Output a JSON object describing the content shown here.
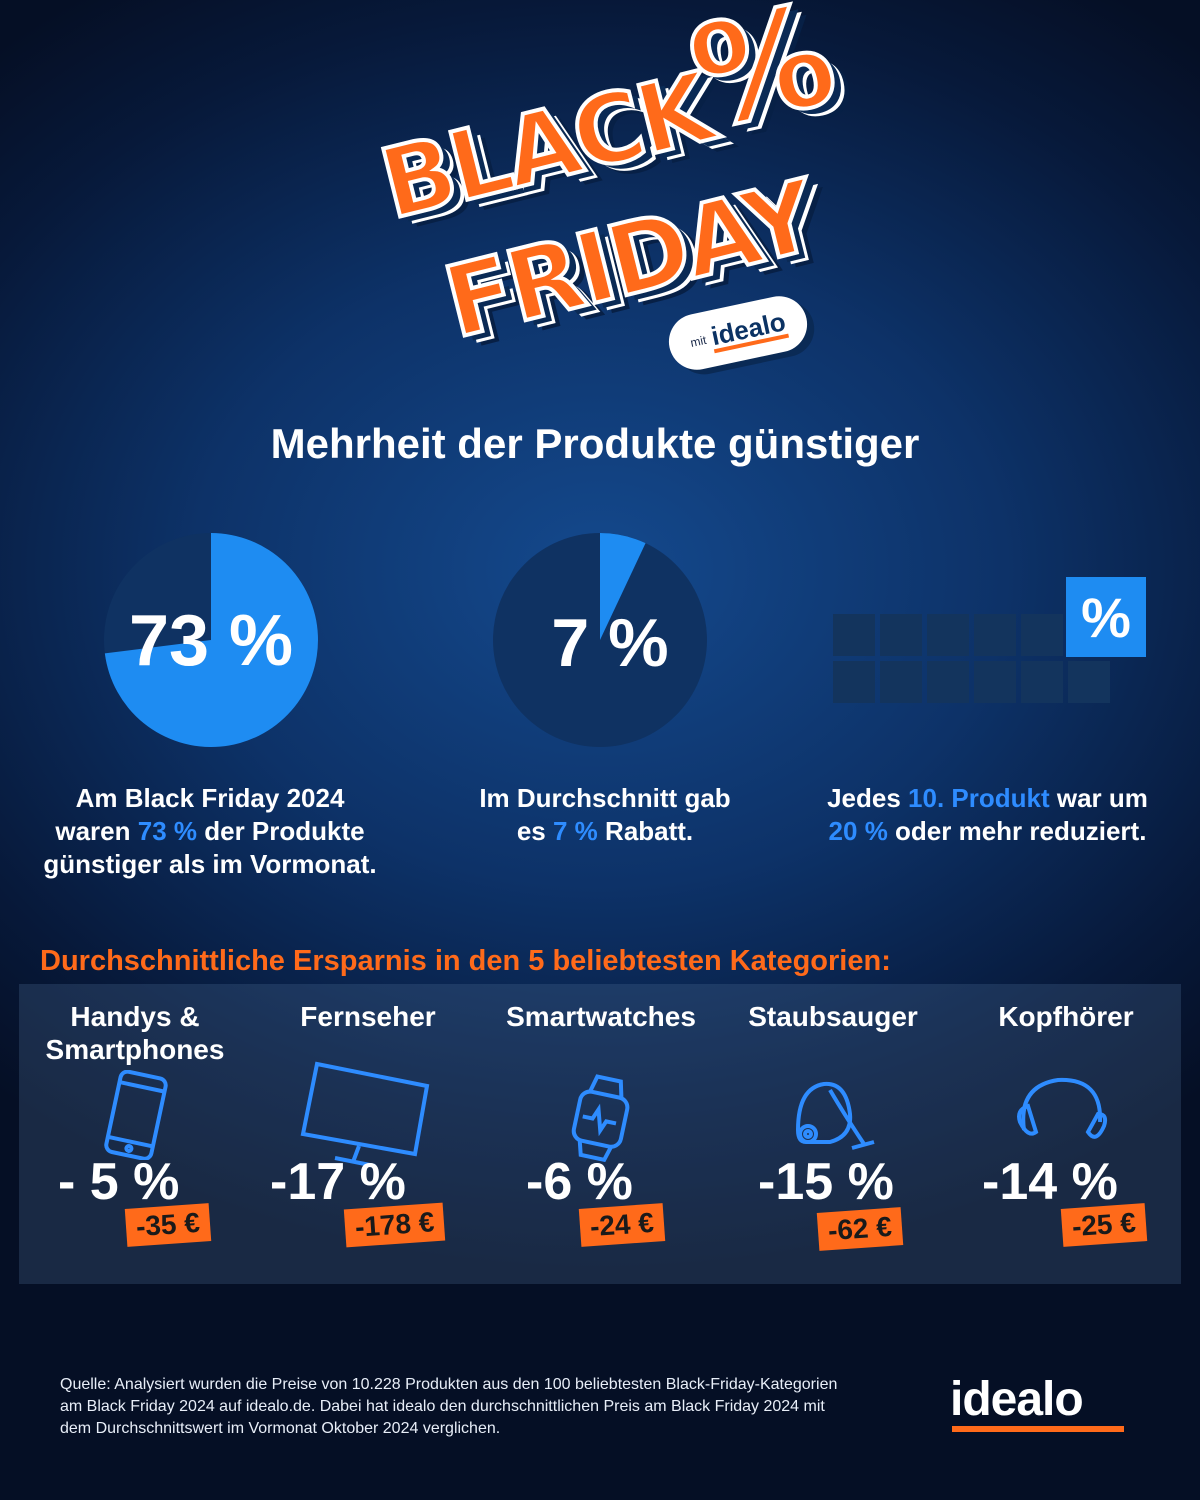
{
  "logo": {
    "word1": "BLACK",
    "word2": "FRIDAY",
    "symbol": "%",
    "badge_prefix": "mit",
    "badge_brand": "idealo"
  },
  "headline": "Mehrheit der Produkte günstiger",
  "colors": {
    "accent_blue": "#2e8cff",
    "accent_orange": "#ff6a1a",
    "pie_bg": "#0f3262"
  },
  "stats": [
    {
      "value_label": "73 %",
      "share": 0.73,
      "caption": [
        "Am Black Friday 2024",
        "waren ",
        "73 %",
        " der Produkte",
        "günstiger als im Vormonat."
      ]
    },
    {
      "value_label": "7 %",
      "share": 0.07,
      "caption": [
        "Im Durchschnitt gab",
        "es ",
        "7 %",
        " Rabatt."
      ]
    },
    {
      "grid_symbol": "%",
      "grid_highlight_fraction": 0.1,
      "caption": [
        "Jedes ",
        "10. Produkt",
        " war um",
        "20 %",
        " oder mehr reduziert."
      ]
    }
  ],
  "categories_title": "Durchschnittliche Ersparnis in den 5 beliebtesten Kategorien:",
  "categories": [
    {
      "name_line1": "Handys &",
      "name_line2": "Smartphones",
      "icon": "smartphone-icon",
      "pct": "- 5 %",
      "eur": "-35 €"
    },
    {
      "name_line1": "Fernseher",
      "name_line2": "",
      "icon": "tv-icon",
      "pct": "-17 %",
      "eur": "-178 €"
    },
    {
      "name_line1": "Smartwatches",
      "name_line2": "",
      "icon": "smartwatch-icon",
      "pct": "-6 %",
      "eur": "-24 €"
    },
    {
      "name_line1": "Staubsauger",
      "name_line2": "",
      "icon": "vacuum-icon",
      "pct": "-15 %",
      "eur": "-62 €"
    },
    {
      "name_line1": "Kopfhörer",
      "name_line2": "",
      "icon": "headphones-icon",
      "pct": "-14 %",
      "eur": "-25 €"
    }
  ],
  "source": "Quelle: Analysiert wurden die Preise von 10.228 Produkten aus den 100 beliebtesten Black-Friday-Kategorien am Black Friday 2024 auf idealo.de. Dabei hat idealo den durchschnittlichen Preis am Black Friday 2024 mit dem Durchschnittswert im Vormonat Oktober 2024 verglichen.",
  "brand": "idealo"
}
